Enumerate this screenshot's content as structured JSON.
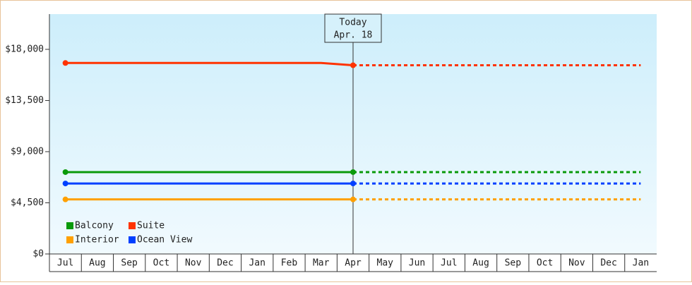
{
  "chart_data": {
    "type": "line",
    "categories": [
      "Jul",
      "Aug",
      "Sep",
      "Oct",
      "Nov",
      "Dec",
      "Jan",
      "Feb",
      "Mar",
      "Apr",
      "May",
      "Jun",
      "Jul",
      "Aug",
      "Sep",
      "Oct",
      "Nov",
      "Dec",
      "Jan"
    ],
    "series": [
      {
        "name": "Balcony",
        "color": "#0a9a0a",
        "values": [
          7200,
          7200,
          7200,
          7200,
          7200,
          7200,
          7200,
          7200,
          7200,
          7200,
          7200,
          7200,
          7200,
          7200,
          7200,
          7200,
          7200,
          7200,
          7200
        ]
      },
      {
        "name": "Suite",
        "color": "#ff3300",
        "values": [
          16800,
          16800,
          16800,
          16800,
          16800,
          16800,
          16800,
          16800,
          16800,
          16600,
          16600,
          16600,
          16600,
          16600,
          16600,
          16600,
          16600,
          16600,
          16600
        ]
      },
      {
        "name": "Interior",
        "color": "#ffa000",
        "values": [
          4800,
          4800,
          4800,
          4800,
          4800,
          4800,
          4800,
          4800,
          4800,
          4800,
          4800,
          4800,
          4800,
          4800,
          4800,
          4800,
          4800,
          4800,
          4800
        ]
      },
      {
        "name": "Ocean View",
        "color": "#0040ff",
        "values": [
          6200,
          6200,
          6200,
          6200,
          6200,
          6200,
          6200,
          6200,
          6200,
          6200,
          6200,
          6200,
          6200,
          6200,
          6200,
          6200,
          6200,
          6200,
          6200
        ]
      }
    ],
    "annotation": {
      "lines": [
        "Today",
        "Apr. 18"
      ],
      "category": 9
    },
    "ylim": [
      0,
      21100
    ],
    "yticks": [
      {
        "value": 0,
        "label": "$0"
      },
      {
        "value": 4500,
        "label": "$4,500"
      },
      {
        "value": 9000,
        "label": "$9,000"
      },
      {
        "value": 13500,
        "label": "$13,500"
      },
      {
        "value": 18000,
        "label": "$18,000"
      }
    ],
    "legend": "bottom-left"
  }
}
